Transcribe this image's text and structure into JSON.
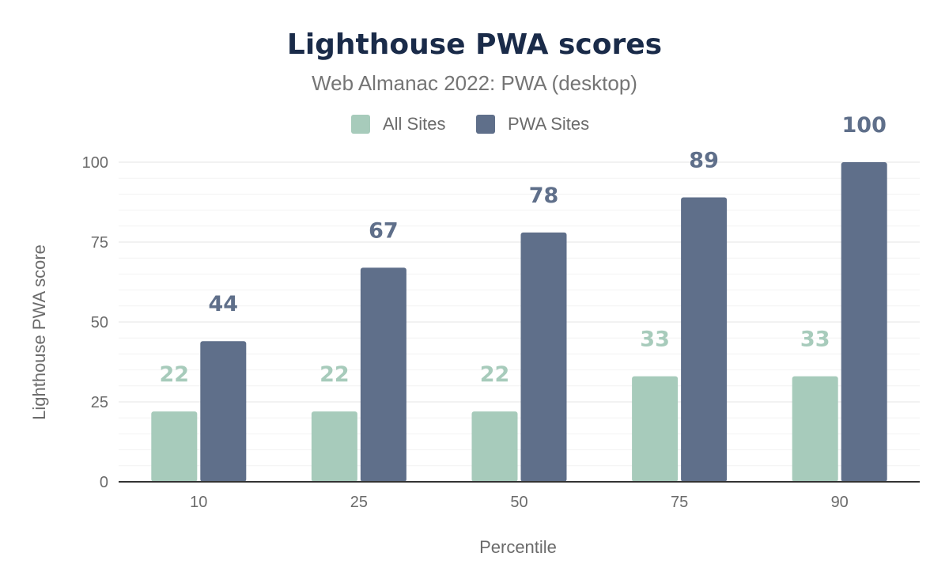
{
  "chart_data": {
    "type": "bar",
    "title": "Lighthouse PWA scores",
    "subtitle": "Web Almanac 2022: PWA (desktop)",
    "xlabel": "Percentile",
    "ylabel": "Lighthouse PWA score",
    "categories": [
      "10",
      "25",
      "50",
      "75",
      "90"
    ],
    "series": [
      {
        "name": "All Sites",
        "color": "#a7cbbb",
        "values": [
          22,
          22,
          22,
          33,
          33
        ]
      },
      {
        "name": "PWA Sites",
        "color": "#5f6f8a",
        "values": [
          44,
          67,
          78,
          89,
          100
        ]
      }
    ],
    "ylim": [
      0,
      100
    ],
    "yticks": [
      0,
      25,
      50,
      75,
      100
    ],
    "grid": true,
    "legend": "top-center"
  }
}
